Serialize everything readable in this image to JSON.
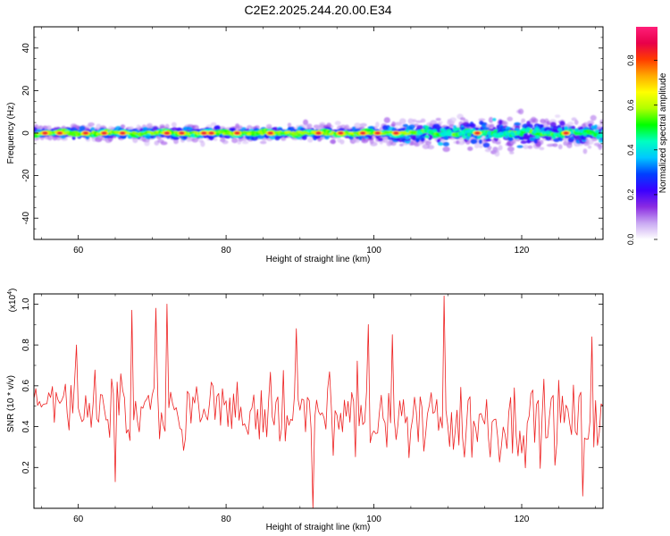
{
  "figure": {
    "title": "C2E2.2025.244.20.00.E34"
  },
  "chart_data": [
    {
      "type": "heatmap",
      "title": "C2E2.2025.244.20.00.E34",
      "xlabel": "Height of straight line (km)",
      "ylabel": "Frequency (Hz)",
      "xlim": [
        54,
        131
      ],
      "ylim": [
        -50,
        50
      ],
      "xticks": [
        60,
        80,
        100,
        120
      ],
      "yticks": [
        -40,
        -20,
        0,
        20,
        40
      ],
      "ytick_labels": [
        "-40",
        "-20",
        "0",
        "20",
        "40"
      ],
      "band_center_hz": 0,
      "band_halfwidth_hz": [
        [
          54,
          3
        ],
        [
          70,
          4
        ],
        [
          80,
          4
        ],
        [
          95,
          4
        ],
        [
          100,
          5
        ],
        [
          108,
          8
        ],
        [
          120,
          9
        ],
        [
          131,
          7
        ]
      ],
      "colorbar": {
        "label": "Normalized spectral amplitude",
        "range": [
          0,
          0.95
        ],
        "ticks": [
          0.0,
          0.2,
          0.4,
          0.6,
          0.8
        ],
        "tick_labels": [
          "0.0",
          "0.2",
          "0.4",
          "0.6",
          "0.8"
        ],
        "colors": [
          "#ffffff",
          "#c9a8f2",
          "#8a2be2",
          "#3a00ff",
          "#0040ff",
          "#00c8ff",
          "#00ffc0",
          "#00ff00",
          "#b0ff00",
          "#ffff00",
          "#ffaa00",
          "#ff3c00",
          "#e8004a",
          "#ff1e78"
        ]
      },
      "hot_spots_km": [
        55.5,
        57.5,
        61,
        63.5,
        66,
        72,
        74,
        77,
        78,
        81.5,
        86,
        92.5,
        95.5,
        98.5,
        100.5,
        103,
        114,
        126
      ]
    },
    {
      "type": "line",
      "title": "",
      "xlabel": "Height of straight line (km)",
      "ylabel": "SNR (10 * v/v)",
      "y_multiplier_label": "(x10",
      "y_multiplier_exp": "4",
      "y_multiplier_close": ")",
      "xlim": [
        54,
        131
      ],
      "ylim": [
        0,
        1.05
      ],
      "xticks": [
        60,
        80,
        100,
        120
      ],
      "yticks": [
        0.2,
        0.4,
        0.6,
        0.8,
        1.0
      ],
      "ytick_labels": [
        "0.2",
        "0.4",
        "0.6",
        "0.8",
        "1.0"
      ],
      "line_color": "#ee2222",
      "series": [
        {
          "name": "SNR",
          "sample_step_km": 0.25,
          "envelope": {
            "x": [
              54,
              58,
              62,
              66,
              70,
              74,
              78,
              82,
              86,
              90,
              94,
              98,
              102,
              106,
              110,
              114,
              118,
              122,
              126,
              131
            ],
            "mean": [
              0.55,
              0.53,
              0.5,
              0.5,
              0.52,
              0.48,
              0.5,
              0.46,
              0.47,
              0.46,
              0.45,
              0.46,
              0.42,
              0.42,
              0.44,
              0.42,
              0.42,
              0.43,
              0.44,
              0.4
            ],
            "spread": [
              0.08,
              0.12,
              0.14,
              0.2,
              0.24,
              0.2,
              0.18,
              0.18,
              0.2,
              0.2,
              0.18,
              0.2,
              0.22,
              0.22,
              0.24,
              0.24,
              0.22,
              0.22,
              0.2,
              0.2
            ]
          },
          "peaks": [
            {
              "x": 67.2,
              "y": 0.97
            },
            {
              "x": 70.4,
              "y": 0.98
            },
            {
              "x": 72.0,
              "y": 1.0
            },
            {
              "x": 109.6,
              "y": 1.04
            },
            {
              "x": 59.8,
              "y": 0.8
            },
            {
              "x": 89.4,
              "y": 0.88
            },
            {
              "x": 99.2,
              "y": 0.9
            },
            {
              "x": 102.6,
              "y": 0.85
            },
            {
              "x": 129.6,
              "y": 0.84
            },
            {
              "x": 91.8,
              "y": 0.0
            },
            {
              "x": 65.0,
              "y": 0.13
            },
            {
              "x": 128.2,
              "y": 0.06
            }
          ]
        }
      ]
    }
  ]
}
